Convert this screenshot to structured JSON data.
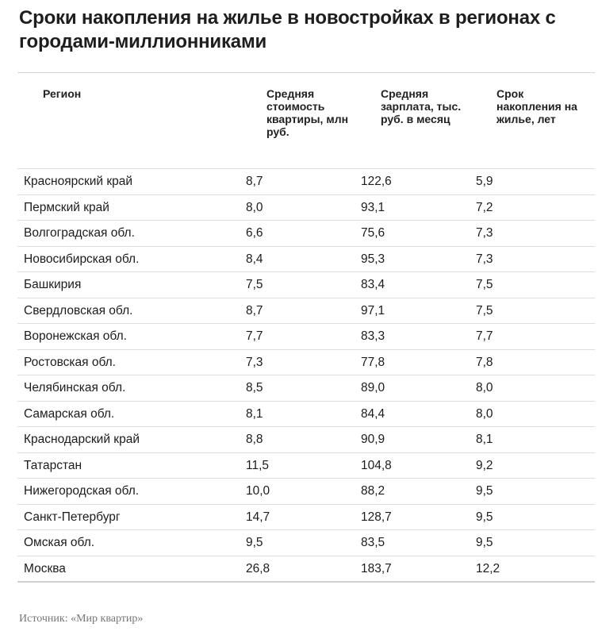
{
  "title": "Сроки накопления на жилье в новостройках в регионах с городами-миллионниками",
  "table": {
    "headers": [
      "Регион",
      "Средняя стоимость квартиры, млн руб.",
      "Средняя зарплата, тыс. руб. в месяц",
      "Срок накопления на жилье, лет"
    ],
    "rows": [
      [
        "Красноярский край",
        "8,7",
        "122,6",
        "5,9"
      ],
      [
        "Пермский край",
        "8,0",
        "93,1",
        "7,2"
      ],
      [
        "Волгоградская обл.",
        "6,6",
        "75,6",
        "7,3"
      ],
      [
        "Новосибирская обл.",
        "8,4",
        "95,3",
        "7,3"
      ],
      [
        "Башкирия",
        "7,5",
        "83,4",
        "7,5"
      ],
      [
        "Свердловская обл.",
        "8,7",
        "97,1",
        "7,5"
      ],
      [
        "Воронежская обл.",
        "7,7",
        "83,3",
        "7,7"
      ],
      [
        "Ростовская обл.",
        "7,3",
        "77,8",
        "7,8"
      ],
      [
        "Челябинская обл.",
        "8,5",
        "89,0",
        "8,0"
      ],
      [
        "Самарская обл.",
        "8,1",
        "84,4",
        "8,0"
      ],
      [
        "Краснодарский край",
        "8,8",
        "90,9",
        "8,1"
      ],
      [
        "Татарстан",
        "11,5",
        "104,8",
        "9,2"
      ],
      [
        "Нижегородская обл.",
        "10,0",
        "88,2",
        "9,5"
      ],
      [
        "Санкт-Петербург",
        "14,7",
        "128,7",
        "9,5"
      ],
      [
        "Омская обл.",
        "9,5",
        "83,5",
        "9,5"
      ],
      [
        "Москва",
        "26,8",
        "183,7",
        "12,2"
      ]
    ]
  },
  "source": "Источник: «Мир квартир»"
}
